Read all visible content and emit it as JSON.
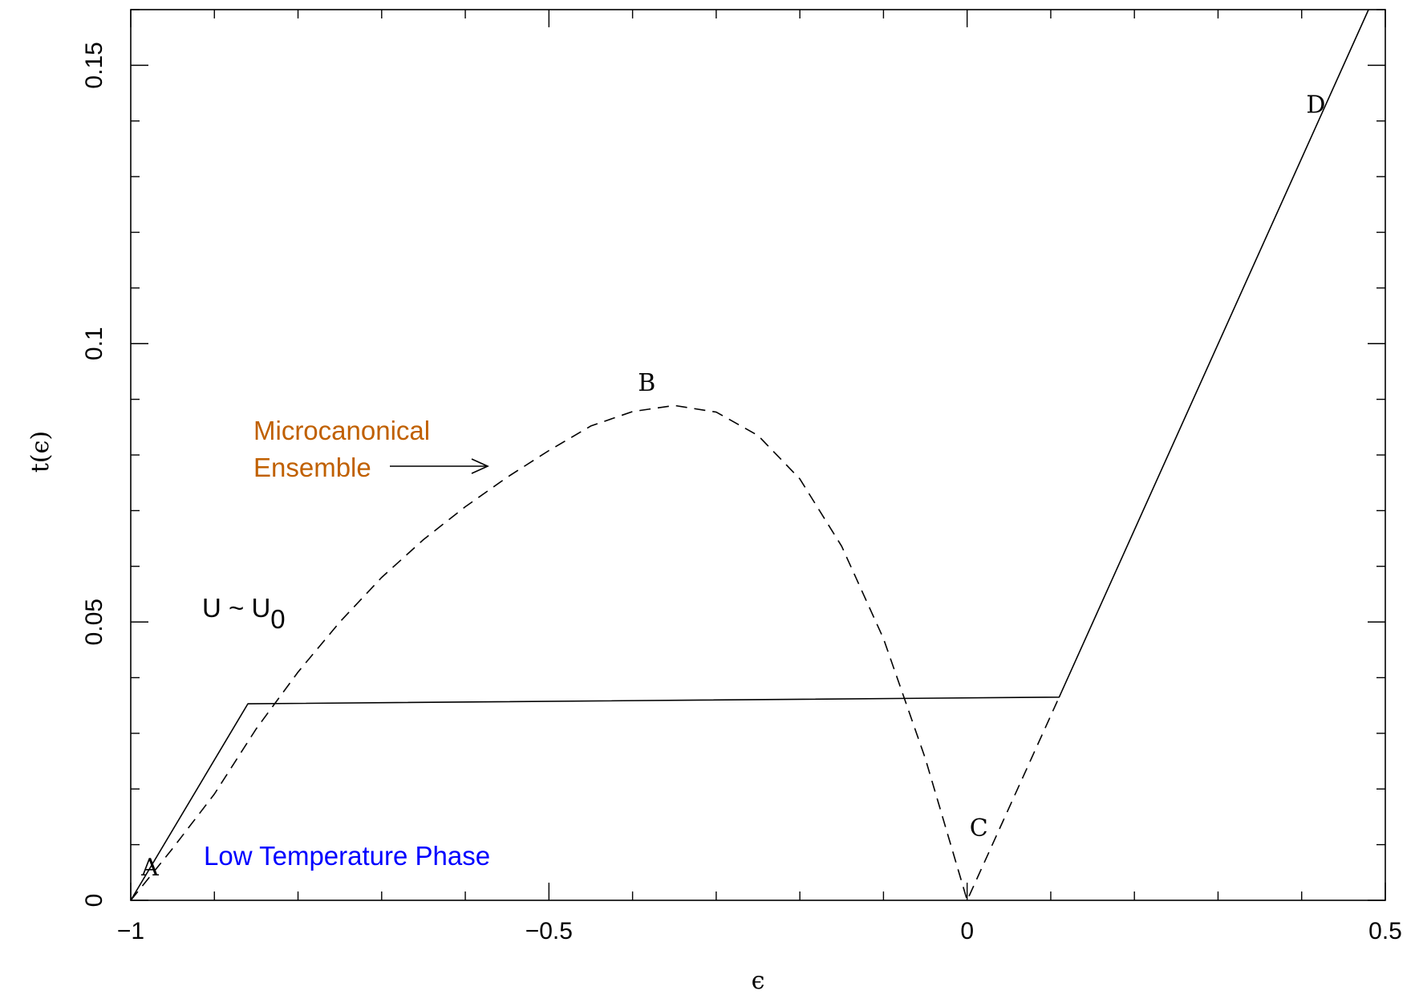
{
  "chart_data": {
    "type": "line",
    "title": "",
    "xlabel": "ϵ",
    "ylabel": "t(ϵ)",
    "xlim": [
      -1,
      0.5
    ],
    "ylim": [
      0,
      0.16
    ],
    "x_ticks": [
      {
        "value": -1,
        "label": "−1"
      },
      {
        "value": -0.5,
        "label": "−0.5"
      },
      {
        "value": 0,
        "label": "0"
      },
      {
        "value": 0.5,
        "label": "0.5"
      }
    ],
    "y_ticks": [
      {
        "value": 0,
        "label": "0"
      },
      {
        "value": 0.05,
        "label": "0.05"
      },
      {
        "value": 0.1,
        "label": "0.1"
      },
      {
        "value": 0.15,
        "label": "0.15"
      }
    ],
    "x_minor_step": 0.1,
    "y_minor_step": 0.01,
    "series": [
      {
        "style": "solid",
        "x": [
          -1.0,
          -0.86,
          0.11,
          0.48
        ],
        "y": [
          0.0,
          0.0353,
          0.0365,
          0.16
        ]
      },
      {
        "style": "dashed",
        "x": [
          -1.0,
          -0.95,
          -0.9,
          -0.85,
          -0.8,
          -0.75,
          -0.7,
          -0.65,
          -0.6,
          -0.55,
          -0.5,
          -0.45,
          -0.4,
          -0.35,
          -0.3,
          -0.25,
          -0.2,
          -0.15,
          -0.1,
          -0.05,
          0.0,
          0.11
        ],
        "y": [
          0.0,
          0.0093,
          0.0191,
          0.0308,
          0.041,
          0.05,
          0.058,
          0.0648,
          0.0707,
          0.076,
          0.0808,
          0.0852,
          0.0878,
          0.0889,
          0.0877,
          0.0835,
          0.0757,
          0.0636,
          0.047,
          0.0255,
          0.0,
          0.0365
        ]
      }
    ],
    "point_labels": [
      {
        "text": "A",
        "x": -0.977,
        "y": 0.0045
      },
      {
        "text": "B",
        "x": -0.383,
        "y": 0.0915
      },
      {
        "text": "C",
        "x": 0.014,
        "y": 0.0115
      },
      {
        "text": "D",
        "x": 0.417,
        "y": 0.1415
      }
    ],
    "annotations": {
      "microcanonical_line1": "Microcanonical",
      "microcanonical_line2": "Ensemble",
      "u_main": "U ~ U",
      "u_sub": "0",
      "low_temp": "Low Temperature Phase"
    },
    "colors": {
      "microcanonical": "#c06000",
      "low_temp": "#0000ff",
      "u_label": "#000000"
    }
  }
}
